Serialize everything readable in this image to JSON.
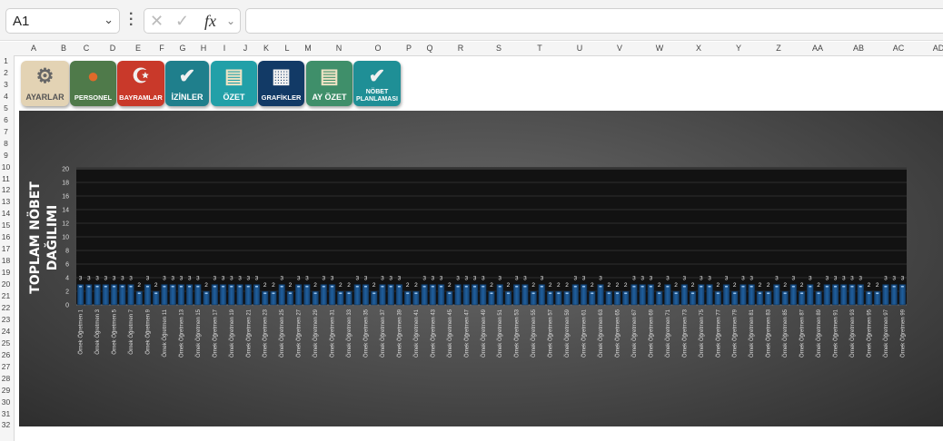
{
  "formula_bar": {
    "name_box": "A1",
    "name_box_dropdown_icon": "chevron-down-icon",
    "cancel_icon": "x-icon",
    "confirm_icon": "check-icon",
    "fx_label": "fx",
    "formula_value": ""
  },
  "columns": [
    "A",
    "B",
    "C",
    "D",
    "E",
    "F",
    "G",
    "H",
    "I",
    "J",
    "K",
    "L",
    "M",
    "N",
    "O",
    "P",
    "Q",
    "R",
    "S",
    "T",
    "U",
    "V",
    "W",
    "X",
    "Y",
    "Z",
    "AA",
    "AB",
    "AC",
    "AD"
  ],
  "rows": [
    "1",
    "2",
    "3",
    "4",
    "5",
    "6",
    "7",
    "8",
    "9",
    "10",
    "11",
    "12",
    "13",
    "14",
    "15",
    "16",
    "17",
    "18",
    "19",
    "20",
    "21",
    "22",
    "23",
    "24",
    "25",
    "26",
    "27",
    "28",
    "29",
    "30",
    "31",
    "32"
  ],
  "buttons": [
    {
      "label": "AYARLAR",
      "icon": "gear-icon",
      "color": "#e3d3b4"
    },
    {
      "label": "PERSONEL",
      "icon": "person-icon",
      "color": "#4f7a4a"
    },
    {
      "label": "BAYRAMLAR",
      "icon": "crescent-star-icon",
      "color": "#c9392a"
    },
    {
      "label": "İZİNLER",
      "icon": "check-icon",
      "color": "#1f7f8c"
    },
    {
      "label": "ÖZET",
      "icon": "document-icon",
      "color": "#22a0a8"
    },
    {
      "label": "GRAFİKLER",
      "icon": "calendar-chart-icon",
      "color": "#123a66",
      "icon_text": "GRAFİK"
    },
    {
      "label": "AY ÖZET",
      "icon": "document-icon",
      "color": "#3f8f6a"
    },
    {
      "label": "NÖBET PLANLAMASI",
      "icon": "check-icon",
      "color": "#1f8f96"
    }
  ],
  "chart_data": {
    "type": "bar",
    "title": "TOPLAM NÖBET DAĞILIMI",
    "xlabel": "",
    "ylabel": "",
    "ylim": [
      0,
      20
    ],
    "y_ticks": [
      "0",
      "2",
      "4",
      "6",
      "8",
      "10",
      "12",
      "14",
      "16",
      "18",
      "20"
    ],
    "grid": true,
    "legend": "none",
    "bar_color": "#1f5f9e",
    "x_tick_labels": [
      "Örnek Öğretmen 1",
      "Örnek Öğretmen 3",
      "Örnek Öğretmen 5",
      "Örnek Öğretmen 7",
      "Örnek Öğretmen 9",
      "Örnek Öğretmen 11",
      "Örnek Öğretmen 13",
      "Örnek Öğretmen 15",
      "Örnek Öğretmen 17",
      "Örnek Öğretmen 19",
      "Örnek Öğretmen 21",
      "Örnek Öğretmen 23",
      "Örnek Öğretmen 25",
      "Örnek Öğretmen 27",
      "Örnek Öğretmen 29",
      "Örnek Öğretmen 31",
      "Örnek Öğretmen 33",
      "Örnek Öğretmen 35",
      "Örnek Öğretmen 37",
      "Örnek Öğretmen 39",
      "Örnek Öğretmen 41",
      "Örnek Öğretmen 43",
      "Örnek Öğretmen 45",
      "Örnek Öğretmen 47",
      "Örnek Öğretmen 49",
      "Örnek Öğretmen 51",
      "Örnek Öğretmen 53",
      "Örnek Öğretmen 55",
      "Örnek Öğretmen 57",
      "Örnek Öğretmen 59",
      "Örnek Öğretmen 61",
      "Örnek Öğretmen 63",
      "Örnek Öğretmen 65",
      "Örnek Öğretmen 67",
      "Örnek Öğretmen 69",
      "Örnek Öğretmen 71",
      "Örnek Öğretmen 73",
      "Örnek Öğretmen 75",
      "Örnek Öğretmen 77",
      "Örnek Öğretmen 79",
      "Örnek Öğretmen 81",
      "Örnek Öğretmen 83",
      "Örnek Öğretmen 85",
      "Örnek Öğretmen 87",
      "Örnek Öğretmen 89",
      "Örnek Öğretmen 91",
      "Örnek Öğretmen 93",
      "Örnek Öğretmen 95",
      "Örnek Öğretmen 97",
      "Örnek Öğretmen 99"
    ],
    "values": [
      3,
      3,
      3,
      3,
      3,
      3,
      3,
      2,
      3,
      2,
      3,
      3,
      3,
      3,
      3,
      2,
      3,
      3,
      3,
      3,
      3,
      3,
      2,
      2,
      3,
      2,
      3,
      3,
      2,
      3,
      3,
      2,
      2,
      3,
      3,
      2,
      3,
      3,
      3,
      2,
      2,
      3,
      3,
      3,
      2,
      3,
      3,
      3,
      3,
      2,
      3,
      2,
      3,
      3,
      2,
      3,
      2,
      2,
      2,
      3,
      3,
      2,
      3,
      2,
      2,
      2,
      3,
      3,
      3,
      2,
      3,
      2,
      3,
      2,
      3,
      3,
      2,
      3,
      2,
      3,
      3,
      2,
      2,
      3,
      2,
      3,
      2,
      3,
      2,
      3,
      3,
      3,
      3,
      3,
      2,
      2,
      3,
      3,
      3
    ]
  }
}
